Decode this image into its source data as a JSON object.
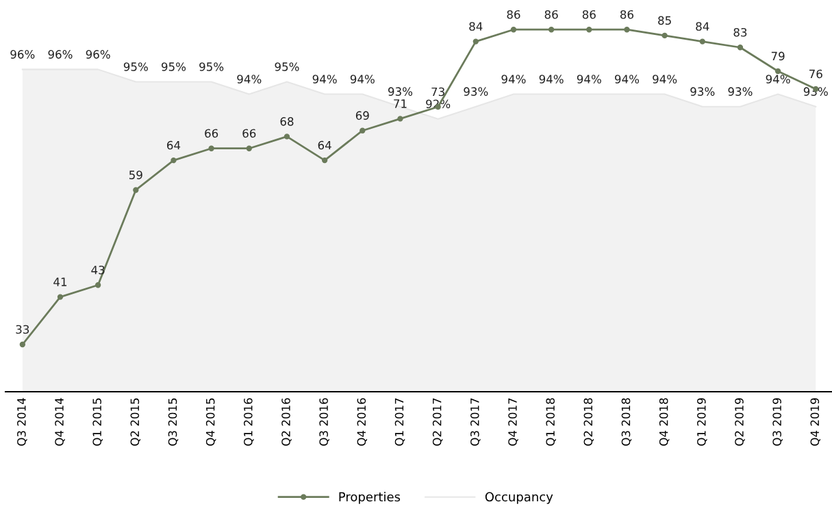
{
  "chart_data": {
    "type": "line",
    "categories": [
      "Q3 2014",
      "Q4 2014",
      "Q1 2015",
      "Q2 2015",
      "Q3 2015",
      "Q4 2015",
      "Q1 2016",
      "Q2 2016",
      "Q3 2016",
      "Q4 2016",
      "Q1 2017",
      "Q2 2017",
      "Q3 2017",
      "Q4 2017",
      "Q1 2018",
      "Q2 2018",
      "Q3 2018",
      "Q4 2018",
      "Q1 2019",
      "Q2 2019",
      "Q3 2019",
      "Q4 2019"
    ],
    "series": [
      {
        "name": "Properties",
        "color": "#6b7b5b",
        "marker": "circle",
        "values": [
          33,
          41,
          43,
          59,
          64,
          66,
          66,
          68,
          64,
          69,
          71,
          73,
          84,
          86,
          86,
          86,
          86,
          85,
          84,
          83,
          79,
          76
        ],
        "value_labels": [
          "33",
          "41",
          "43",
          "59",
          "64",
          "66",
          "66",
          "68",
          "64",
          "69",
          "71",
          "73",
          "84",
          "86",
          "86",
          "86",
          "86",
          "85",
          "84",
          "83",
          "79",
          "76"
        ]
      },
      {
        "name": "Occupancy",
        "type": "area",
        "axis": "y2",
        "color": "#f2f2f2",
        "values": [
          96,
          96,
          96,
          95,
          95,
          95,
          94,
          95,
          94,
          94,
          93,
          92,
          93,
          94,
          94,
          94,
          94,
          94,
          93,
          93,
          94,
          93
        ],
        "value_labels": [
          "96%",
          "96%",
          "96%",
          "95%",
          "95%",
          "95%",
          "94%",
          "95%",
          "94%",
          "94%",
          "93%",
          "92%",
          "93%",
          "94%",
          "94%",
          "94%",
          "94%",
          "94%",
          "93%",
          "93%",
          "94%",
          "93%"
        ]
      }
    ],
    "tick_labels": "x",
    "legend": "bottom",
    "grid": false
  }
}
